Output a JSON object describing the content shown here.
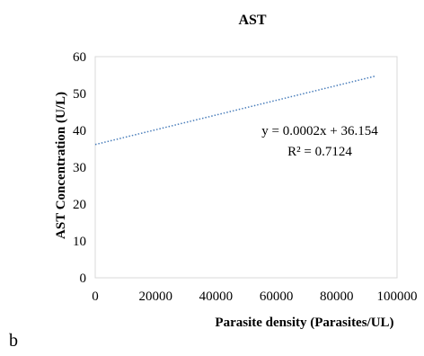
{
  "panel_label": "b",
  "chart_data": {
    "type": "scatter",
    "title": "AST",
    "xlabel": "Parasite density (Parasites/UL)",
    "ylabel": "AST Concentration  (U/L)",
    "xlim": [
      0,
      100000
    ],
    "ylim": [
      0,
      60
    ],
    "x_ticks": [
      0,
      20000,
      40000,
      60000,
      80000,
      100000
    ],
    "y_ticks": [
      0,
      10,
      20,
      30,
      40,
      50,
      60
    ],
    "grid": false,
    "legend": "none",
    "trendline": {
      "kind": "linear",
      "style": "dotted",
      "color": "#4a7ebb",
      "slope": 0.0002,
      "intercept": 36.154,
      "x_range": [
        0,
        93000
      ],
      "equation_label": "y = 0.0002x + 36.154",
      "r2_label": "R² = 0.7124"
    },
    "series": []
  }
}
